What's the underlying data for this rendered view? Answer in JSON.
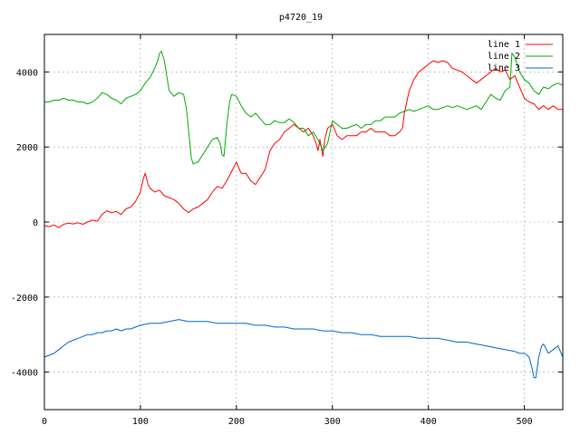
{
  "chart_data": {
    "type": "line",
    "title": "p4720_19",
    "xlabel": "",
    "ylabel": "",
    "xlim": [
      0,
      540
    ],
    "ylim": [
      -5000,
      5000
    ],
    "xticks": [
      0,
      100,
      200,
      300,
      400,
      500
    ],
    "yticks": [
      -4000,
      -2000,
      0,
      2000,
      4000
    ],
    "grid": true,
    "legend_position": "top-right",
    "series": [
      {
        "name": "line 1",
        "color": "#ff0000",
        "x": [
          0,
          5,
          10,
          15,
          20,
          25,
          30,
          35,
          40,
          45,
          50,
          55,
          60,
          65,
          70,
          75,
          80,
          85,
          90,
          95,
          100,
          103,
          105,
          108,
          110,
          115,
          120,
          125,
          130,
          135,
          140,
          145,
          150,
          155,
          160,
          165,
          170,
          175,
          180,
          185,
          190,
          195,
          200,
          205,
          210,
          215,
          220,
          225,
          230,
          235,
          240,
          245,
          250,
          255,
          260,
          265,
          270,
          275,
          280,
          283,
          285,
          287,
          290,
          292,
          295,
          300,
          305,
          310,
          315,
          320,
          325,
          330,
          335,
          340,
          345,
          350,
          355,
          360,
          365,
          370,
          373,
          375,
          380,
          385,
          390,
          395,
          400,
          405,
          410,
          415,
          420,
          425,
          430,
          435,
          440,
          445,
          450,
          455,
          460,
          465,
          470,
          475,
          480,
          485,
          490,
          495,
          500,
          505,
          510,
          515,
          520,
          525,
          530,
          535,
          540
        ],
        "values": [
          -100,
          -120,
          -80,
          -150,
          -60,
          -30,
          -50,
          -20,
          -60,
          0,
          50,
          20,
          200,
          300,
          250,
          280,
          200,
          350,
          400,
          550,
          800,
          1150,
          1300,
          1000,
          900,
          800,
          850,
          700,
          650,
          600,
          500,
          350,
          250,
          350,
          400,
          500,
          600,
          800,
          950,
          900,
          1100,
          1350,
          1600,
          1300,
          1300,
          1100,
          1000,
          1200,
          1400,
          1900,
          2100,
          2200,
          2400,
          2500,
          2600,
          2500,
          2400,
          2500,
          2300,
          2100,
          1900,
          2200,
          1750,
          2200,
          2500,
          2600,
          2300,
          2200,
          2300,
          2300,
          2300,
          2400,
          2400,
          2500,
          2400,
          2400,
          2400,
          2300,
          2300,
          2400,
          2500,
          2900,
          3500,
          3800,
          4000,
          4100,
          4200,
          4300,
          4250,
          4300,
          4250,
          4100,
          4050,
          4000,
          3900,
          3800,
          3700,
          3800,
          3900,
          4000,
          4100,
          4000,
          4050,
          3800,
          3900,
          3600,
          3300,
          3200,
          3150,
          3000,
          3100,
          3000,
          3100,
          3000,
          3000
        ]
      },
      {
        "name": "line 2",
        "color": "#00aa00",
        "x": [
          0,
          5,
          10,
          15,
          20,
          25,
          30,
          35,
          40,
          45,
          50,
          55,
          60,
          65,
          70,
          75,
          80,
          85,
          90,
          95,
          100,
          105,
          110,
          115,
          118,
          120,
          122,
          125,
          128,
          130,
          135,
          140,
          145,
          148,
          150,
          153,
          155,
          160,
          165,
          170,
          175,
          180,
          183,
          185,
          187,
          190,
          193,
          195,
          200,
          205,
          210,
          215,
          220,
          225,
          230,
          235,
          240,
          245,
          250,
          255,
          260,
          265,
          270,
          275,
          280,
          285,
          290,
          295,
          300,
          305,
          310,
          315,
          320,
          325,
          330,
          335,
          340,
          345,
          350,
          355,
          360,
          365,
          370,
          375,
          380,
          385,
          390,
          395,
          400,
          405,
          410,
          415,
          420,
          425,
          430,
          435,
          440,
          445,
          450,
          455,
          460,
          465,
          470,
          475,
          480,
          485,
          487,
          490,
          495,
          500,
          505,
          510,
          515,
          520,
          525,
          530,
          535,
          540
        ],
        "values": [
          3200,
          3200,
          3250,
          3250,
          3300,
          3250,
          3250,
          3200,
          3200,
          3150,
          3200,
          3300,
          3450,
          3400,
          3300,
          3250,
          3150,
          3300,
          3350,
          3400,
          3500,
          3700,
          3850,
          4100,
          4300,
          4500,
          4550,
          4300,
          3800,
          3500,
          3350,
          3450,
          3400,
          3000,
          2500,
          1700,
          1550,
          1600,
          1800,
          2000,
          2200,
          2250,
          2100,
          1800,
          1750,
          2600,
          3200,
          3400,
          3350,
          3100,
          2900,
          2800,
          2900,
          2750,
          2600,
          2600,
          2700,
          2650,
          2650,
          2750,
          2650,
          2500,
          2500,
          2300,
          2400,
          2200,
          1900,
          2100,
          2700,
          2600,
          2500,
          2500,
          2550,
          2600,
          2500,
          2600,
          2600,
          2700,
          2700,
          2800,
          2800,
          2800,
          2900,
          2950,
          3000,
          2950,
          3000,
          3050,
          3100,
          3000,
          3000,
          3050,
          3100,
          3050,
          3100,
          3050,
          3000,
          3050,
          3100,
          3000,
          3200,
          3400,
          3300,
          3250,
          3500,
          3600,
          4500,
          4400,
          4000,
          3800,
          3700,
          3500,
          3400,
          3600,
          3550,
          3650,
          3700,
          3650
        ]
      },
      {
        "name": "line 3",
        "color": "#0066cc",
        "x": [
          0,
          5,
          10,
          15,
          20,
          25,
          30,
          35,
          40,
          45,
          50,
          55,
          60,
          65,
          70,
          75,
          80,
          85,
          90,
          95,
          100,
          110,
          120,
          130,
          140,
          150,
          160,
          170,
          180,
          190,
          200,
          210,
          220,
          230,
          240,
          250,
          260,
          270,
          280,
          290,
          300,
          310,
          320,
          330,
          340,
          350,
          360,
          370,
          380,
          390,
          400,
          410,
          420,
          430,
          440,
          450,
          460,
          470,
          480,
          490,
          495,
          500,
          505,
          508,
          510,
          512,
          515,
          518,
          520,
          525,
          530,
          535,
          540
        ],
        "values": [
          -3600,
          -3550,
          -3500,
          -3400,
          -3300,
          -3200,
          -3150,
          -3100,
          -3050,
          -3000,
          -3000,
          -2950,
          -2950,
          -2900,
          -2900,
          -2850,
          -2900,
          -2850,
          -2850,
          -2800,
          -2750,
          -2700,
          -2700,
          -2650,
          -2600,
          -2650,
          -2650,
          -2650,
          -2700,
          -2700,
          -2700,
          -2700,
          -2750,
          -2750,
          -2800,
          -2800,
          -2850,
          -2850,
          -2850,
          -2900,
          -2900,
          -2950,
          -2950,
          -3000,
          -3000,
          -3050,
          -3050,
          -3050,
          -3050,
          -3100,
          -3100,
          -3100,
          -3150,
          -3200,
          -3200,
          -3250,
          -3300,
          -3350,
          -3400,
          -3450,
          -3500,
          -3500,
          -3600,
          -3900,
          -4150,
          -4150,
          -3600,
          -3300,
          -3250,
          -3500,
          -3400,
          -3300,
          -3600
        ]
      }
    ]
  }
}
